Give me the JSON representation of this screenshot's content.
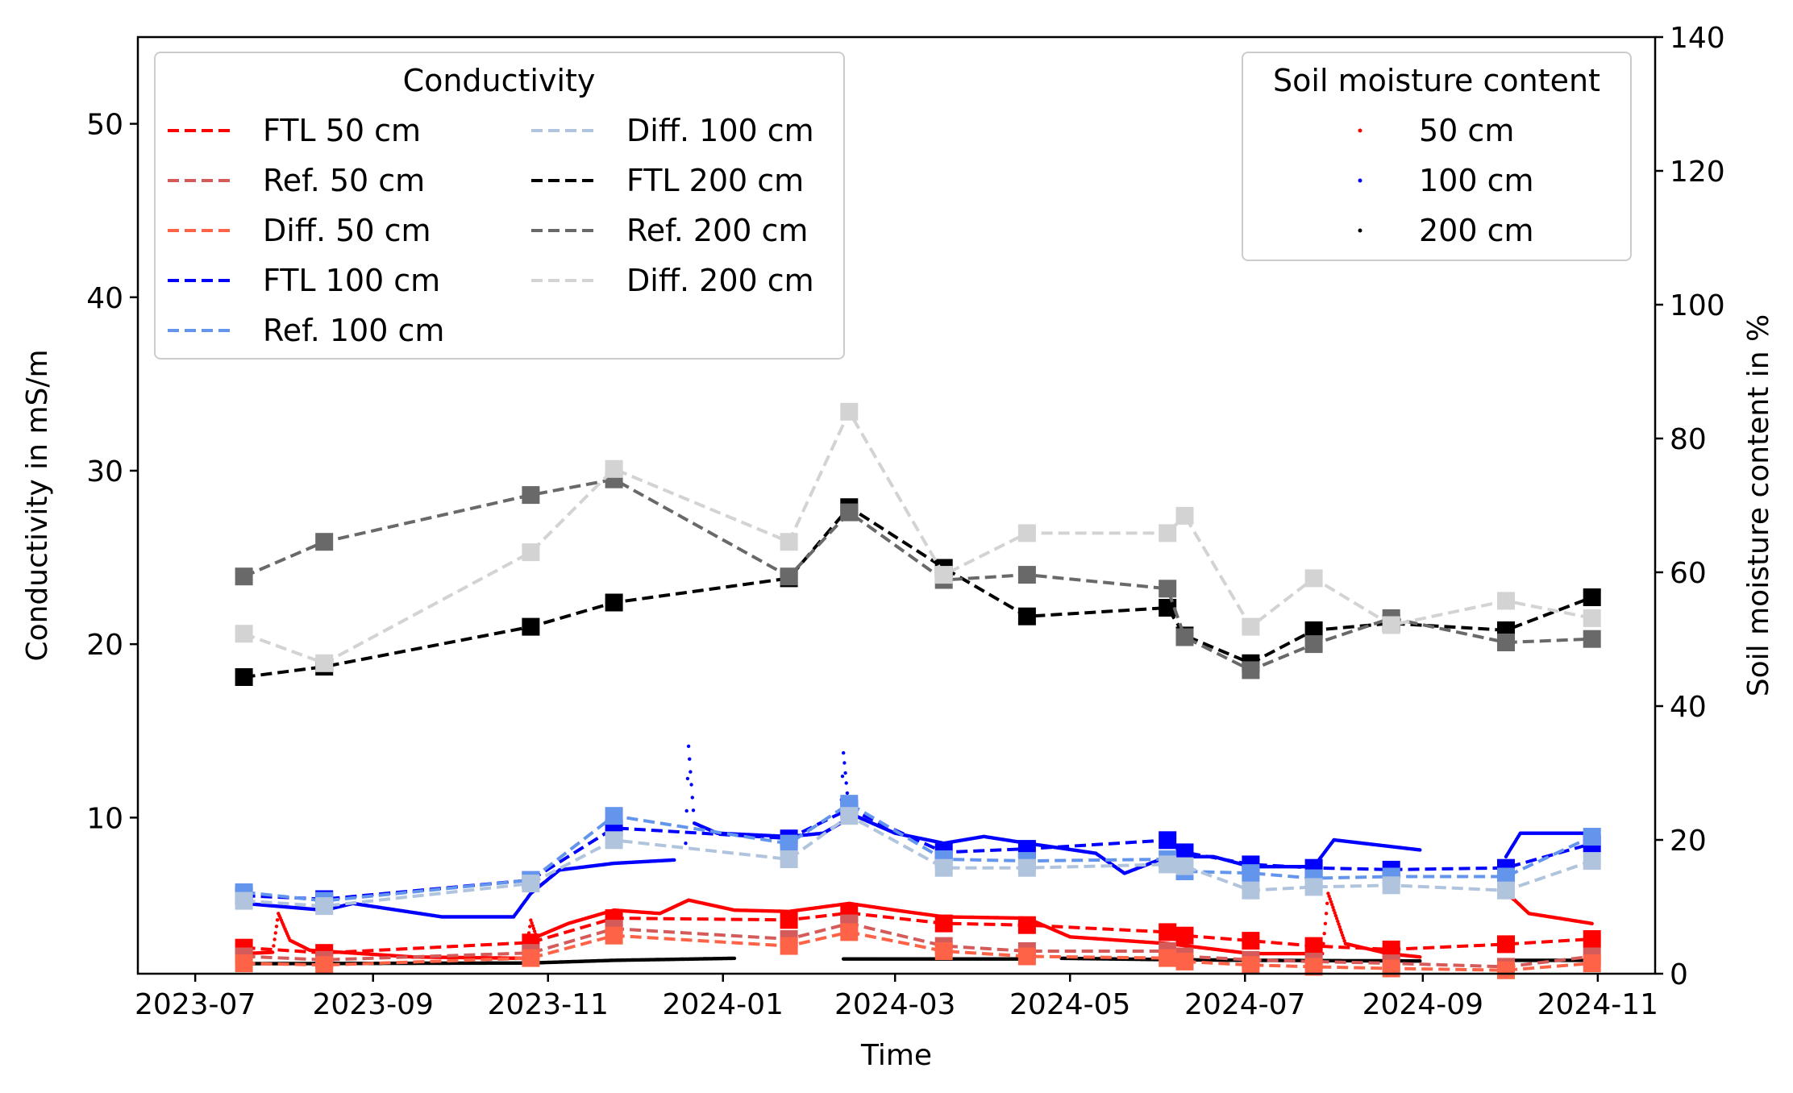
{
  "chart_data": {
    "type": "line",
    "xlabel": "Time",
    "ylabel_left": "Conductivity in mS/m",
    "ylabel_right": "Soil moisture content in %",
    "ylim_left": [
      1,
      55
    ],
    "ylim_right": [
      0,
      140
    ],
    "xlim": [
      "2023-06-11",
      "2024-11-21"
    ],
    "x_ticks": [
      "2023-07",
      "2023-09",
      "2023-11",
      "2024-01",
      "2024-03",
      "2024-05",
      "2024-07",
      "2024-09",
      "2024-11"
    ],
    "y_ticks_left": [
      "10",
      "20",
      "30",
      "40",
      "50"
    ],
    "y_ticks_right": [
      "0",
      "20",
      "40",
      "60",
      "80",
      "100",
      "120",
      "140"
    ],
    "grid": false,
    "legend_left": {
      "title": "Conductivity",
      "placement": "top-left",
      "entries": [
        "FTL 50 cm",
        "Ref. 50 cm",
        "Diff. 50 cm",
        "FTL 100 cm",
        "Ref. 100 cm",
        "Diff. 100 cm",
        "FTL 200 cm",
        "Ref. 200 cm",
        "Diff. 200 cm"
      ]
    },
    "legend_right": {
      "title": "Soil moisture content",
      "placement": "top-right",
      "entries": [
        "50 cm",
        "100 cm",
        "200 cm"
      ]
    },
    "conductivity_series": [
      {
        "name": "FTL 50 cm",
        "color": "#ff0000",
        "points": [
          [
            "2023-07-18",
            2.5
          ],
          [
            "2023-08-15",
            2.2
          ],
          [
            "2023-10-26",
            2.8
          ],
          [
            "2023-11-24",
            4.2
          ],
          [
            "2024-01-24",
            4.1
          ],
          [
            "2024-02-14",
            4.5
          ],
          [
            "2024-03-18",
            3.9
          ],
          [
            "2024-04-16",
            3.8
          ],
          [
            "2024-06-04",
            3.4
          ],
          [
            "2024-06-10",
            3.2
          ],
          [
            "2024-07-03",
            2.9
          ],
          [
            "2024-07-25",
            2.6
          ],
          [
            "2024-08-21",
            2.4
          ],
          [
            "2024-09-30",
            2.7
          ],
          [
            "2024-10-30",
            3.0
          ]
        ]
      },
      {
        "name": "Ref. 50 cm",
        "color": "#d55a5a",
        "points": [
          [
            "2023-07-18",
            2.0
          ],
          [
            "2023-08-15",
            1.8
          ],
          [
            "2023-10-26",
            2.2
          ],
          [
            "2023-11-24",
            3.6
          ],
          [
            "2024-01-24",
            3.0
          ],
          [
            "2024-02-14",
            3.9
          ],
          [
            "2024-03-18",
            2.6
          ],
          [
            "2024-04-16",
            2.3
          ],
          [
            "2024-06-04",
            2.3
          ],
          [
            "2024-06-10",
            2.0
          ],
          [
            "2024-07-03",
            1.8
          ],
          [
            "2024-07-25",
            1.7
          ],
          [
            "2024-08-21",
            1.6
          ],
          [
            "2024-09-30",
            1.4
          ],
          [
            "2024-10-30",
            2.0
          ]
        ]
      },
      {
        "name": "Diff. 50 cm",
        "color": "#ff6347",
        "points": [
          [
            "2023-07-18",
            1.6
          ],
          [
            "2023-08-15",
            1.5
          ],
          [
            "2023-10-26",
            1.9
          ],
          [
            "2023-11-24",
            3.2
          ],
          [
            "2024-01-24",
            2.6
          ],
          [
            "2024-02-14",
            3.4
          ],
          [
            "2024-03-18",
            2.3
          ],
          [
            "2024-04-16",
            2.0
          ],
          [
            "2024-06-04",
            1.9
          ],
          [
            "2024-06-10",
            1.7
          ],
          [
            "2024-07-03",
            1.5
          ],
          [
            "2024-07-25",
            1.4
          ],
          [
            "2024-08-21",
            1.3
          ],
          [
            "2024-09-30",
            1.2
          ],
          [
            "2024-10-30",
            1.6
          ]
        ]
      },
      {
        "name": "FTL 100 cm",
        "color": "#0000ff",
        "points": [
          [
            "2023-07-18",
            5.5
          ],
          [
            "2023-08-15",
            5.3
          ],
          [
            "2023-10-26",
            6.4
          ],
          [
            "2023-11-24",
            9.4
          ],
          [
            "2024-01-24",
            8.8
          ],
          [
            "2024-02-14",
            10.5
          ],
          [
            "2024-03-18",
            8.0
          ],
          [
            "2024-04-16",
            8.2
          ],
          [
            "2024-06-04",
            8.7
          ],
          [
            "2024-06-10",
            8.0
          ],
          [
            "2024-07-03",
            7.3
          ],
          [
            "2024-07-25",
            7.1
          ],
          [
            "2024-08-21",
            7.0
          ],
          [
            "2024-09-30",
            7.1
          ],
          [
            "2024-10-30",
            8.5
          ]
        ]
      },
      {
        "name": "Ref. 100 cm",
        "color": "#6495ed",
        "points": [
          [
            "2023-07-18",
            5.7
          ],
          [
            "2023-08-15",
            5.2
          ],
          [
            "2023-10-26",
            6.4
          ],
          [
            "2023-11-24",
            10.1
          ],
          [
            "2024-01-24",
            8.5
          ],
          [
            "2024-02-14",
            10.8
          ],
          [
            "2024-03-18",
            7.6
          ],
          [
            "2024-04-16",
            7.5
          ],
          [
            "2024-06-04",
            7.6
          ],
          [
            "2024-06-10",
            6.9
          ],
          [
            "2024-07-03",
            6.8
          ],
          [
            "2024-07-25",
            6.5
          ],
          [
            "2024-08-21",
            6.6
          ],
          [
            "2024-09-30",
            6.6
          ],
          [
            "2024-10-30",
            8.9
          ]
        ]
      },
      {
        "name": "Diff. 100 cm",
        "color": "#b0c4de",
        "points": [
          [
            "2023-07-18",
            5.2
          ],
          [
            "2023-08-15",
            4.9
          ],
          [
            "2023-10-26",
            6.2
          ],
          [
            "2023-11-24",
            8.7
          ],
          [
            "2024-01-24",
            7.6
          ],
          [
            "2024-02-14",
            10.1
          ],
          [
            "2024-03-18",
            7.1
          ],
          [
            "2024-04-16",
            7.1
          ],
          [
            "2024-06-04",
            7.3
          ],
          [
            "2024-06-10",
            7.2
          ],
          [
            "2024-07-03",
            5.8
          ],
          [
            "2024-07-25",
            6.0
          ],
          [
            "2024-08-21",
            6.1
          ],
          [
            "2024-09-30",
            5.8
          ],
          [
            "2024-10-30",
            7.5
          ]
        ]
      },
      {
        "name": "FTL 200 cm",
        "color": "#000000",
        "points": [
          [
            "2023-07-18",
            18.1
          ],
          [
            "2023-08-15",
            18.7
          ],
          [
            "2023-10-26",
            21.0
          ],
          [
            "2023-11-24",
            22.4
          ],
          [
            "2024-01-24",
            23.8
          ],
          [
            "2024-02-14",
            27.9
          ],
          [
            "2024-03-18",
            24.4
          ],
          [
            "2024-04-16",
            21.6
          ],
          [
            "2024-06-04",
            22.1
          ],
          [
            "2024-06-10",
            20.5
          ],
          [
            "2024-07-03",
            18.9
          ],
          [
            "2024-07-25",
            20.8
          ],
          [
            "2024-08-21",
            21.2
          ],
          [
            "2024-09-30",
            20.8
          ],
          [
            "2024-10-30",
            22.7
          ]
        ]
      },
      {
        "name": "Ref. 200 cm",
        "color": "#696969",
        "points": [
          [
            "2023-07-18",
            23.9
          ],
          [
            "2023-08-15",
            25.9
          ],
          [
            "2023-10-26",
            28.6
          ],
          [
            "2023-11-24",
            29.5
          ],
          [
            "2024-01-24",
            23.9
          ],
          [
            "2024-02-14",
            27.6
          ],
          [
            "2024-03-18",
            23.7
          ],
          [
            "2024-04-16",
            24.0
          ],
          [
            "2024-06-04",
            23.2
          ],
          [
            "2024-06-10",
            20.4
          ],
          [
            "2024-07-03",
            18.5
          ],
          [
            "2024-07-25",
            20.0
          ],
          [
            "2024-08-21",
            21.5
          ],
          [
            "2024-09-30",
            20.1
          ],
          [
            "2024-10-30",
            20.3
          ]
        ]
      },
      {
        "name": "Diff. 200 cm",
        "color": "#d3d3d3",
        "points": [
          [
            "2023-07-18",
            20.6
          ],
          [
            "2023-08-15",
            18.9
          ],
          [
            "2023-10-26",
            25.3
          ],
          [
            "2023-11-24",
            30.1
          ],
          [
            "2024-01-24",
            25.9
          ],
          [
            "2024-02-14",
            33.4
          ],
          [
            "2024-03-18",
            24.0
          ],
          [
            "2024-04-16",
            26.4
          ],
          [
            "2024-06-04",
            26.4
          ],
          [
            "2024-06-10",
            27.4
          ],
          [
            "2024-07-03",
            21.0
          ],
          [
            "2024-07-25",
            23.8
          ],
          [
            "2024-08-21",
            21.1
          ],
          [
            "2024-09-30",
            22.5
          ],
          [
            "2024-10-30",
            21.5
          ]
        ]
      }
    ],
    "soil_moisture_series": [
      {
        "name": "50 cm",
        "color": "#ff0000",
        "segments": [
          [
            [
              "2023-07-18",
              3.0
            ],
            [
              "2023-07-28",
              3.2
            ],
            [
              "2023-07-30",
              9.0
            ],
            [
              "2023-08-03",
              5.0
            ],
            [
              "2023-08-10",
              3.5
            ],
            [
              "2023-09-15",
              2.5
            ],
            [
              "2023-10-24",
              2.3
            ],
            [
              "2023-10-26",
              8.0
            ],
            [
              "2023-10-28",
              5.5
            ],
            [
              "2023-11-08",
              7.5
            ],
            [
              "2023-11-24",
              9.5
            ],
            [
              "2023-12-10",
              9.0
            ],
            [
              "2023-12-20",
              11.0
            ],
            [
              "2024-01-05",
              9.5
            ],
            [
              "2024-01-24",
              9.3
            ],
            [
              "2024-02-14",
              10.5
            ],
            [
              "2024-03-01",
              9.5
            ],
            [
              "2024-03-18",
              8.5
            ],
            [
              "2024-04-16",
              8.3
            ],
            [
              "2024-05-01",
              5.5
            ],
            [
              "2024-06-04",
              4.5
            ],
            [
              "2024-07-03",
              3.0
            ],
            [
              "2024-07-28",
              3.0
            ],
            [
              "2024-07-30",
              12.0
            ],
            [
              "2024-08-05",
              4.5
            ],
            [
              "2024-08-20",
              3.0
            ],
            [
              "2024-08-31",
              2.5
            ]
          ],
          [
            [
              "2024-09-30",
              12.0
            ],
            [
              "2024-10-03",
              11.0
            ],
            [
              "2024-10-08",
              9.0
            ],
            [
              "2024-10-30",
              7.5
            ]
          ]
        ]
      },
      {
        "name": "100 cm",
        "color": "#0000ff",
        "segments": [
          [
            [
              "2023-07-18",
              10.5
            ],
            [
              "2023-08-15",
              9.5
            ],
            [
              "2023-08-25",
              10.5
            ],
            [
              "2023-09-25",
              8.5
            ],
            [
              "2023-10-20",
              8.5
            ],
            [
              "2023-10-26",
              12.0
            ],
            [
              "2023-11-05",
              15.5
            ],
            [
              "2023-11-24",
              16.5
            ],
            [
              "2023-12-15",
              17.0
            ]
          ],
          [
            [
              "2023-12-19",
              19.5
            ],
            [
              "2023-12-20",
              34.0
            ],
            [
              "2023-12-22",
              22.5
            ],
            [
              "2023-12-30",
              21.0
            ],
            [
              "2024-01-24",
              20.5
            ],
            [
              "2024-02-05",
              21.0
            ],
            [
              "2024-02-11",
              22.5
            ],
            [
              "2024-02-12",
              33.0
            ],
            [
              "2024-02-14",
              24.0
            ],
            [
              "2024-03-01",
              21.0
            ],
            [
              "2024-03-18",
              19.5
            ],
            [
              "2024-04-01",
              20.5
            ],
            [
              "2024-04-16",
              19.5
            ],
            [
              "2024-05-10",
              18.0
            ],
            [
              "2024-05-20",
              15.0
            ],
            [
              "2024-06-04",
              17.5
            ],
            [
              "2024-06-20",
              17.5
            ],
            [
              "2024-07-03",
              16.0
            ],
            [
              "2024-07-25",
              16.0
            ],
            [
              "2024-08-01",
              20.0
            ],
            [
              "2024-08-31",
              18.5
            ]
          ],
          [
            [
              "2024-09-30",
              17.5
            ],
            [
              "2024-10-05",
              21.0
            ],
            [
              "2024-10-30",
              21.0
            ]
          ]
        ]
      },
      {
        "name": "200 cm",
        "color": "#000000",
        "segments": [
          [
            [
              "2023-07-18",
              1.5
            ],
            [
              "2023-10-26",
              1.6
            ],
            [
              "2023-11-24",
              2.0
            ],
            [
              "2024-01-05",
              2.3
            ]
          ],
          [
            [
              "2024-02-12",
              2.2
            ],
            [
              "2024-04-16",
              2.2
            ]
          ],
          [
            [
              "2024-04-28",
              2.3
            ],
            [
              "2024-06-04",
              2.1
            ],
            [
              "2024-07-03",
              2.0
            ],
            [
              "2024-08-31",
              1.9
            ]
          ],
          [
            [
              "2024-09-30",
              2.0
            ],
            [
              "2024-10-30",
              2.0
            ]
          ]
        ]
      }
    ]
  }
}
